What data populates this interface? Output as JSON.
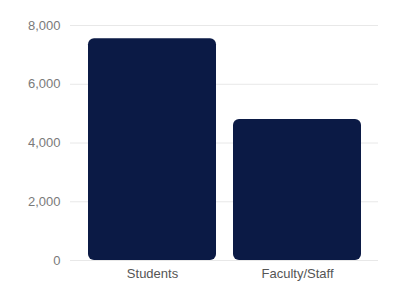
{
  "chart_data": {
    "type": "bar",
    "categories": [
      "Students",
      "Faculty/Staff"
    ],
    "values": [
      7550,
      4800
    ],
    "color": "#0b1a45",
    "ylim": [
      0,
      8000
    ],
    "yticks": [
      0,
      {
        "value": 2000,
        "label": "2,000"
      },
      {
        "value": 4000,
        "label": "4,000"
      },
      {
        "value": 6000,
        "label": "6,000"
      },
      {
        "value": 8000,
        "label": "8,000"
      }
    ],
    "grid": true
  }
}
